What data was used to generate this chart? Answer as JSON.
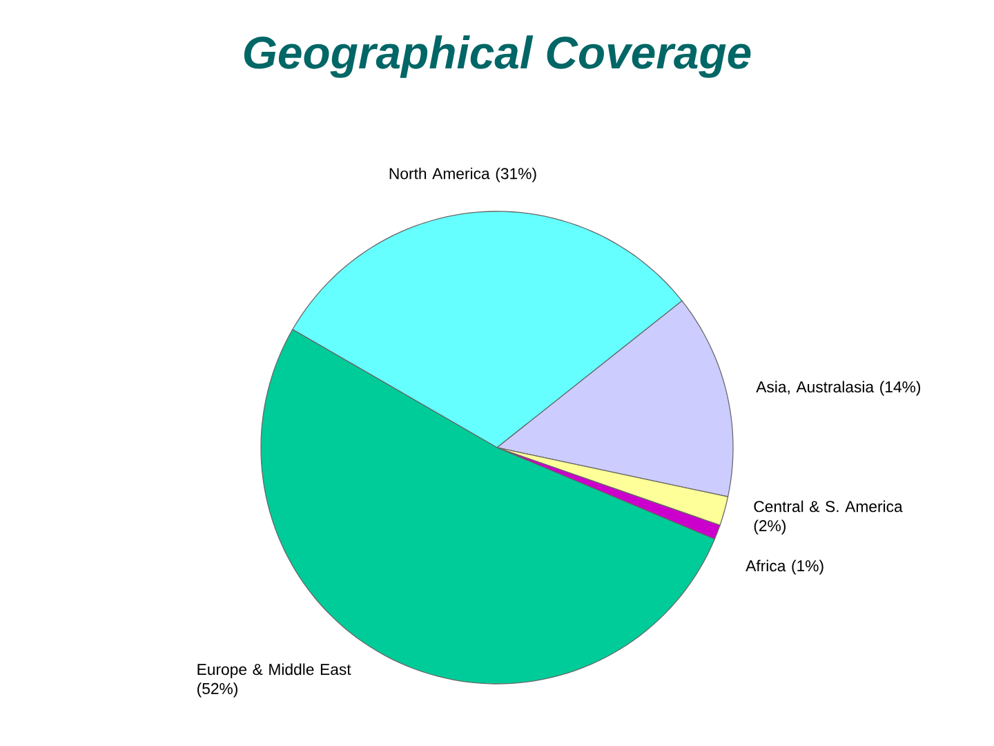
{
  "chart_data": {
    "type": "pie",
    "title": "Geographical Coverage",
    "categories": [
      "North America",
      "Asia, Australasia",
      "Central & S. America",
      "Africa",
      "Europe & Middle East"
    ],
    "values": [
      31,
      14,
      2,
      1,
      52
    ],
    "value_labels": [
      "(31%)",
      "(14%)",
      "(2%)",
      "(1%)",
      "(52%)"
    ],
    "colors": [
      "#66ffff",
      "#ccccff",
      "#ffff99",
      "#cc00cc",
      "#00cc99"
    ]
  }
}
